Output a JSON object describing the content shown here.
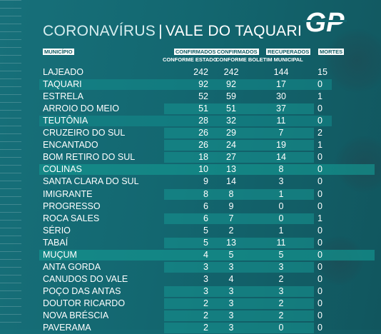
{
  "title": {
    "part1": "CORONAVÍRUS",
    "separator": "|",
    "part2": "VALE DO TAQUARI"
  },
  "logo_text": "GP",
  "headers": {
    "municipio": "MUNICÍPIO",
    "confirmados_estado": "CONFIRMADOS",
    "confirmados_estado_sub": "CONFORME ESTADO",
    "confirmados_municipal": "CONFIRMADOS",
    "confirmados_municipal_sub": "CONFORME BOLETIM MUNICIPAL",
    "recuperados": "RECUPERADOS",
    "mortes": "MORTES"
  },
  "rows": [
    {
      "name": "LAJEADO",
      "conf_estado": "242",
      "conf_municipal": "242",
      "recuperados": "144",
      "mortes": "15"
    },
    {
      "name": "TAQUARI",
      "conf_estado": "92",
      "conf_municipal": "92",
      "recuperados": "17",
      "mortes": "0"
    },
    {
      "name": "ESTRELA",
      "conf_estado": "52",
      "conf_municipal": "59",
      "recuperados": "30",
      "mortes": "1"
    },
    {
      "name": "ARROIO DO MEIO",
      "conf_estado": "51",
      "conf_municipal": "51",
      "recuperados": "37",
      "mortes": "0"
    },
    {
      "name": "TEUTÔNIA",
      "conf_estado": "28",
      "conf_municipal": "32",
      "recuperados": "11",
      "mortes": "0"
    },
    {
      "name": "CRUZEIRO DO SUL",
      "conf_estado": "26",
      "conf_municipal": "29",
      "recuperados": "7",
      "mortes": "2"
    },
    {
      "name": "ENCANTADO",
      "conf_estado": "26",
      "conf_municipal": "24",
      "recuperados": "19",
      "mortes": "1"
    },
    {
      "name": "BOM RETIRO DO SUL",
      "conf_estado": "18",
      "conf_municipal": "27",
      "recuperados": "14",
      "mortes": "0"
    },
    {
      "name": "COLINAS",
      "conf_estado": "10",
      "conf_municipal": "13",
      "recuperados": "8",
      "mortes": "0"
    },
    {
      "name": "SANTA CLARA DO SUL",
      "conf_estado": "9",
      "conf_municipal": "14",
      "recuperados": "3",
      "mortes": "0"
    },
    {
      "name": "IMIGRANTE",
      "conf_estado": "8",
      "conf_municipal": "8",
      "recuperados": "1",
      "mortes": "0"
    },
    {
      "name": "PROGRESSO",
      "conf_estado": "6",
      "conf_municipal": "9",
      "recuperados": "0",
      "mortes": "0"
    },
    {
      "name": "ROCA SALES",
      "conf_estado": "6",
      "conf_municipal": "7",
      "recuperados": "0",
      "mortes": "1"
    },
    {
      "name": "SÉRIO",
      "conf_estado": "5",
      "conf_municipal": "2",
      "recuperados": "1",
      "mortes": "0"
    },
    {
      "name": "TABAÍ",
      "conf_estado": "5",
      "conf_municipal": "13",
      "recuperados": "11",
      "mortes": "0"
    },
    {
      "name": "MUÇUM",
      "conf_estado": "4",
      "conf_municipal": "5",
      "recuperados": "5",
      "mortes": "0"
    },
    {
      "name": "ANTA GORDA",
      "conf_estado": "3",
      "conf_municipal": "3",
      "recuperados": "3",
      "mortes": "0"
    },
    {
      "name": "CANUDOS DO VALE",
      "conf_estado": "3",
      "conf_municipal": "4",
      "recuperados": "2",
      "mortes": "0"
    },
    {
      "name": "POÇO DAS ANTAS",
      "conf_estado": "3",
      "conf_municipal": "3",
      "recuperados": "3",
      "mortes": "0"
    },
    {
      "name": "DOUTOR RICARDO",
      "conf_estado": "2",
      "conf_municipal": "3",
      "recuperados": "2",
      "mortes": "0"
    },
    {
      "name": "NOVA BRÉSCIA",
      "conf_estado": "2",
      "conf_municipal": "3",
      "recuperados": "2",
      "mortes": "0"
    },
    {
      "name": "PAVERAMA",
      "conf_estado": "2",
      "conf_municipal": "3",
      "recuperados": "0",
      "mortes": "0"
    }
  ]
}
